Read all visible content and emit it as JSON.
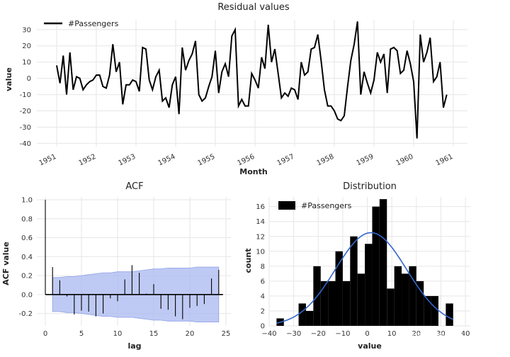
{
  "chart_data": [
    {
      "type": "line",
      "title": "Residual values",
      "xlabel": "Month",
      "ylabel": "value",
      "ylim": [
        -40,
        35
      ],
      "yticks": [
        30,
        20,
        10,
        0,
        -10,
        -20,
        -30,
        -40
      ],
      "xticks": [
        "1951",
        "1952",
        "1953",
        "1954",
        "1955",
        "1956",
        "1957",
        "1958",
        "1959",
        "1960",
        "1961"
      ],
      "legend": "top-left",
      "grid": true,
      "series": [
        {
          "name": "#Passengers",
          "color": "#000000",
          "start": "1951-01",
          "values": [
            8,
            -3,
            14,
            -10,
            16,
            -7,
            1,
            0,
            -7,
            -4,
            -2,
            -1,
            2,
            2,
            -5,
            -6,
            2,
            21,
            4,
            10,
            -16,
            -4,
            -4,
            -1,
            -2,
            -8,
            19,
            18,
            -1,
            -7,
            1,
            5,
            -14,
            -12,
            -18,
            -4,
            1,
            -22,
            19,
            5,
            11,
            15,
            23,
            -10,
            -14,
            -12,
            -5,
            1,
            17,
            -9,
            4,
            9,
            1,
            26,
            30,
            -17,
            -13,
            -17,
            -17,
            3,
            -1,
            -6,
            13,
            6,
            33,
            10,
            18,
            3,
            -12,
            -9,
            -11,
            -6,
            -7,
            -13,
            10,
            2,
            4,
            18,
            19,
            27,
            11,
            -7,
            -17,
            -17,
            -20,
            -25,
            -26,
            -23,
            -5,
            11,
            21,
            35,
            -10,
            4,
            -3,
            -9,
            -1,
            16,
            10,
            15,
            -9,
            18,
            19,
            17,
            3,
            5,
            17,
            9,
            -2,
            -37,
            27,
            10,
            16,
            25,
            -2,
            1,
            10,
            -18,
            -10
          ]
        }
      ]
    },
    {
      "type": "bar",
      "title": "ACF",
      "xlabel": "lag",
      "ylabel": "ACF value",
      "ylim": [
        -0.3,
        1.0
      ],
      "xticks": [
        "0",
        "5",
        "10",
        "15",
        "20",
        "25"
      ],
      "yticks": [
        "1.0",
        "0.8",
        "0.6",
        "0.4",
        "0.2",
        "0.0",
        "-0.2"
      ],
      "grid": true,
      "lags": [
        0,
        1,
        2,
        3,
        4,
        5,
        6,
        7,
        8,
        9,
        10,
        11,
        12,
        13,
        14,
        15,
        16,
        17,
        18,
        19,
        20,
        21,
        22,
        23,
        24
      ],
      "values": [
        1.0,
        0.29,
        0.15,
        -0.02,
        -0.21,
        -0.17,
        -0.18,
        -0.23,
        -0.2,
        -0.04,
        -0.07,
        0.16,
        0.31,
        0.23,
        0.01,
        0.11,
        -0.15,
        -0.16,
        -0.23,
        -0.26,
        -0.14,
        -0.12,
        -0.1,
        0.17,
        0.26
      ],
      "confidence_upper": [
        0.18,
        0.18,
        0.19,
        0.19,
        0.2,
        0.21,
        0.22,
        0.23,
        0.23,
        0.24,
        0.24,
        0.24,
        0.25,
        0.26,
        0.27,
        0.27,
        0.28,
        0.28,
        0.28,
        0.28,
        0.29,
        0.29,
        0.29,
        0.29
      ],
      "band_color": "#a9b8f0",
      "bar_color": "#000000"
    },
    {
      "type": "bar",
      "title": "Distribution",
      "xlabel": "value",
      "ylabel": "count",
      "ylim": [
        0,
        17
      ],
      "xlim": [
        -40,
        40
      ],
      "xticks": [
        "-40",
        "-30",
        "-20",
        "-10",
        "0",
        "10",
        "20",
        "30",
        "40"
      ],
      "yticks": [
        "16",
        "14",
        "12",
        "10",
        "8",
        "6",
        "4",
        "2",
        "0"
      ],
      "legend": "top-left",
      "grid": true,
      "series": [
        {
          "name": "#Passengers",
          "color": "#000000"
        }
      ],
      "bin_edges": [
        -37,
        -34,
        -31,
        -28,
        -25,
        -22,
        -19,
        -16,
        -13,
        -10,
        -7,
        -4,
        -1,
        2,
        5,
        8,
        11,
        14,
        17,
        20,
        23,
        26,
        29,
        32,
        35
      ],
      "counts": [
        1,
        0,
        0,
        3,
        2,
        8,
        6,
        6,
        10,
        6,
        12,
        7,
        11,
        16,
        17,
        5,
        8,
        7,
        8,
        6,
        4,
        4,
        0,
        3
      ],
      "curve_color": "#3366cc",
      "curve": {
        "mean": 1.5,
        "sd": 14.5,
        "peak": 12.5
      }
    }
  ],
  "watermark": "知乎 @凤凰AI"
}
